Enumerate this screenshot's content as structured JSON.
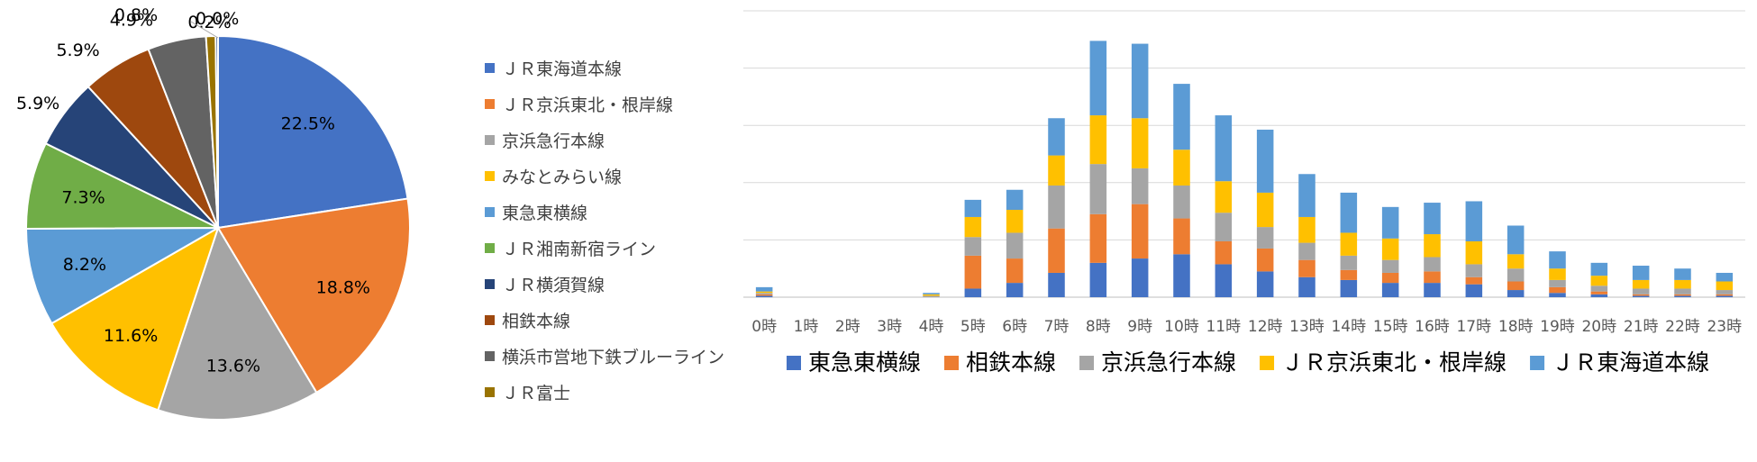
{
  "chart_data": [
    {
      "type": "pie",
      "title": "",
      "start_angle_deg": 0,
      "slices": [
        {
          "label": "ＪＲ東海道本線",
          "value": 22.5,
          "display": "22.5%",
          "color": "#4472C4"
        },
        {
          "label": "ＪＲ京浜東北・根岸線",
          "value": 18.8,
          "display": "18.8%",
          "color": "#ED7D31"
        },
        {
          "label": "京浜急行本線",
          "value": 13.6,
          "display": "13.6%",
          "color": "#A5A5A5"
        },
        {
          "label": "みなとみらい線",
          "value": 11.6,
          "display": "11.6%",
          "color": "#FFC000"
        },
        {
          "label": "東急東横線",
          "value": 8.2,
          "display": "8.2%",
          "color": "#5B9BD5"
        },
        {
          "label": "ＪＲ湘南新宿ライン",
          "value": 7.3,
          "display": "7.3%",
          "color": "#70AD47"
        },
        {
          "label": "ＪＲ横須賀線",
          "value": 5.9,
          "display": "5.9%",
          "color": "#264478"
        },
        {
          "label": "相鉄本線",
          "value": 5.9,
          "display": "5.9%",
          "color": "#9E480E"
        },
        {
          "label": "横浜市営地下鉄ブルーライン",
          "value": 4.9,
          "display": "4.9%",
          "color": "#636363"
        },
        {
          "label": "ＪＲ富士",
          "value": 0.8,
          "display": "0.8%",
          "color": "#997300"
        },
        {
          "label": "",
          "value": 0.2,
          "display": "0.2%",
          "color": "#264478"
        },
        {
          "label": "",
          "value": 0.0,
          "display": "0.0%",
          "color": "#4472C4"
        }
      ],
      "legend": [
        "ＪＲ東海道本線",
        "ＪＲ京浜東北・根岸線",
        "京浜急行本線",
        "みなとみらい線",
        "東急東横線",
        "ＪＲ湘南新宿ライン",
        "ＪＲ横須賀線",
        "相鉄本線",
        "横浜市営地下鉄ブルーライン",
        "ＪＲ富士"
      ]
    },
    {
      "type": "bar",
      "stacked": true,
      "title": "",
      "xlabel": "",
      "ylabel": "",
      "grid": true,
      "ylim": [
        0,
        100
      ],
      "gridlines": [
        0,
        20,
        40,
        60,
        80,
        100
      ],
      "categories": [
        "0時",
        "1時",
        "2時",
        "3時",
        "4時",
        "5時",
        "6時",
        "7時",
        "8時",
        "9時",
        "10時",
        "11時",
        "12時",
        "13時",
        "14時",
        "15時",
        "16時",
        "17時",
        "18時",
        "19時",
        "20時",
        "21時",
        "22時",
        "23時"
      ],
      "series": [
        {
          "name": "東急東横線",
          "color": "#4472C4",
          "values": [
            0.5,
            0,
            0,
            0,
            0,
            3,
            5,
            8.5,
            12,
            13.5,
            15,
            11.5,
            9,
            7,
            6,
            5,
            5,
            4.5,
            2.5,
            1.5,
            1,
            0.5,
            0.5,
            0.5
          ]
        },
        {
          "name": "相鉄本線",
          "color": "#ED7D31",
          "values": [
            0.5,
            0,
            0,
            0,
            0,
            11.5,
            8.5,
            15.5,
            17,
            19,
            12.5,
            8,
            8,
            6,
            3.5,
            3.5,
            4,
            2.5,
            3,
            2,
            1,
            0.5,
            0.5,
            0.5
          ]
        },
        {
          "name": "京浜急行本線",
          "color": "#A5A5A5",
          "values": [
            0.5,
            0,
            0,
            0,
            0.5,
            6.5,
            9,
            15,
            17.5,
            12.5,
            11.5,
            10,
            7.5,
            6,
            5,
            4.5,
            5,
            4.5,
            4.5,
            2.5,
            2,
            2,
            2,
            1.5
          ]
        },
        {
          "name": "ＪＲ京浜東北・根岸線",
          "color": "#FFC000",
          "values": [
            0.5,
            0,
            0,
            0,
            0.5,
            7,
            8,
            10.5,
            17,
            17.5,
            12.5,
            11,
            12,
            9,
            8,
            7.5,
            8,
            8,
            5,
            4,
            3.5,
            3,
            3,
            3
          ]
        },
        {
          "name": "ＪＲ東海道本線",
          "color": "#5B9BD5",
          "values": [
            1.5,
            0,
            0,
            0,
            0.5,
            6,
            7,
            13,
            26,
            26,
            23,
            23,
            22,
            15,
            14,
            11,
            11,
            14,
            10,
            6,
            4.5,
            5,
            4,
            3
          ]
        }
      ],
      "legend_position": "bottom"
    }
  ]
}
